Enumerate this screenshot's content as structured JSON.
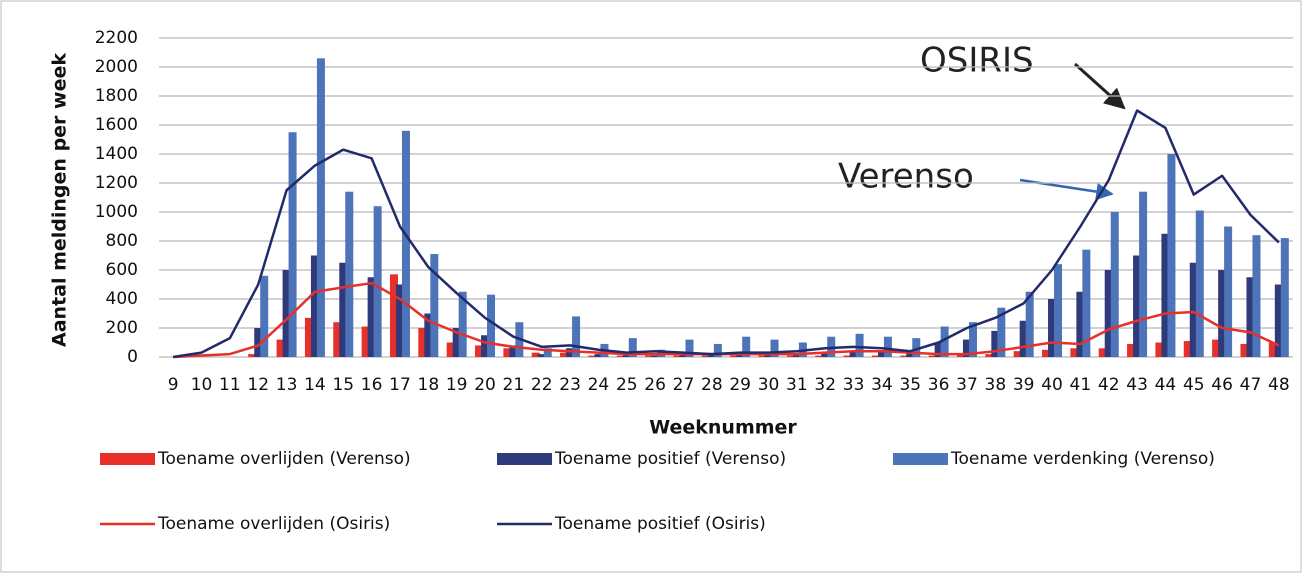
{
  "chart_data": {
    "type": "bar",
    "x_label": "Weeknummer",
    "y_label": "Aantal meldingen per week",
    "categories": [
      "9",
      "10",
      "11",
      "12",
      "13",
      "14",
      "15",
      "16",
      "17",
      "18",
      "19",
      "20",
      "21",
      "22",
      "23",
      "24",
      "25",
      "26",
      "27",
      "28",
      "29",
      "30",
      "31",
      "32",
      "33",
      "34",
      "35",
      "36",
      "37",
      "38",
      "39",
      "40",
      "41",
      "42",
      "43",
      "44",
      "45",
      "46",
      "47",
      "48"
    ],
    "series": [
      {
        "name": "Toename overlijden (Verenso)",
        "type": "bar",
        "color": "#e8302a",
        "values": [
          0,
          0,
          0,
          20,
          120,
          270,
          240,
          210,
          570,
          200,
          100,
          80,
          60,
          30,
          30,
          10,
          10,
          10,
          10,
          10,
          10,
          10,
          10,
          10,
          10,
          10,
          10,
          10,
          20,
          20,
          40,
          50,
          60,
          60,
          90,
          100,
          110,
          120,
          90,
          100
        ]
      },
      {
        "name": "Toename positief (Verenso)",
        "type": "bar",
        "color": "#2e3a7a",
        "values": [
          0,
          0,
          0,
          200,
          600,
          700,
          650,
          550,
          500,
          300,
          200,
          150,
          80,
          20,
          60,
          20,
          20,
          10,
          20,
          20,
          20,
          20,
          20,
          30,
          40,
          40,
          40,
          100,
          120,
          180,
          250,
          400,
          450,
          600,
          700,
          850,
          650,
          600,
          550,
          500
        ]
      },
      {
        "name": "Toename verdenking (Verenso)",
        "type": "bar",
        "color": "#4d73b8",
        "values": [
          0,
          0,
          0,
          560,
          1550,
          2060,
          1140,
          1040,
          1560,
          710,
          450,
          430,
          240,
          60,
          280,
          90,
          130,
          50,
          120,
          90,
          140,
          120,
          100,
          140,
          160,
          140,
          130,
          210,
          240,
          340,
          450,
          640,
          740,
          1000,
          1140,
          1400,
          1010,
          900,
          840,
          820
        ]
      },
      {
        "name": "Toename overlijden (Osiris)",
        "type": "line",
        "color": "#e8302a",
        "values": [
          0,
          10,
          20,
          80,
          260,
          450,
          480,
          510,
          400,
          250,
          170,
          100,
          70,
          50,
          40,
          30,
          20,
          20,
          20,
          20,
          20,
          20,
          20,
          30,
          40,
          40,
          30,
          20,
          20,
          40,
          70,
          100,
          90,
          190,
          250,
          300,
          310,
          200,
          170,
          80
        ]
      },
      {
        "name": "Toename positief (Osiris)",
        "type": "line",
        "color": "#232a6b",
        "values": [
          0,
          30,
          130,
          500,
          1150,
          1320,
          1430,
          1370,
          900,
          620,
          440,
          270,
          140,
          70,
          80,
          50,
          30,
          40,
          30,
          20,
          30,
          30,
          40,
          60,
          70,
          60,
          40,
          100,
          200,
          270,
          370,
          600,
          900,
          1220,
          1700,
          1580,
          1120,
          1250,
          980,
          790
        ]
      }
    ],
    "ylim": [
      0,
      2200
    ],
    "yticks": [
      0,
      200,
      400,
      600,
      800,
      1000,
      1200,
      1400,
      1600,
      1800,
      2000,
      2200
    ],
    "grid": true,
    "annotations": [
      "OSIRIS",
      "Verenso"
    ]
  }
}
